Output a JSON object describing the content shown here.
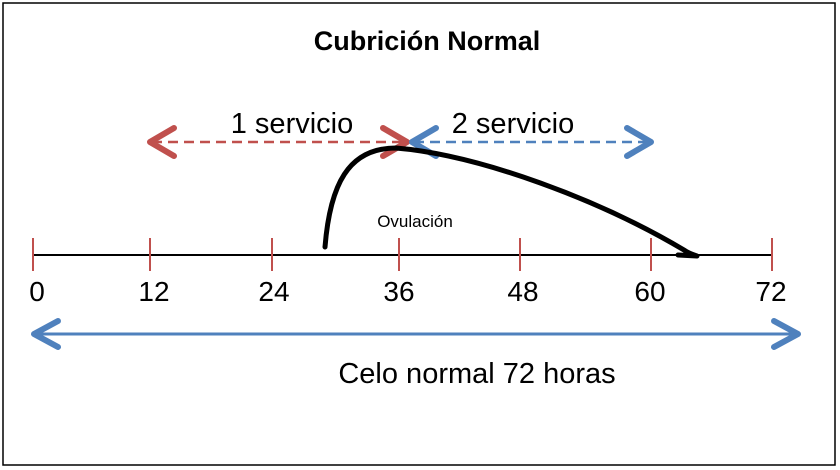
{
  "title": "Cubrición Normal",
  "service_1": {
    "label": "1 servicio",
    "range_hours": [
      12,
      36
    ],
    "color": "#C0504D"
  },
  "service_2": {
    "label": "2 servicio",
    "range_hours": [
      36,
      60
    ],
    "color": "#4F81BD"
  },
  "ovulation": {
    "label": "Ovulación",
    "curve_hours": [
      30,
      65
    ],
    "peak_hour": 36
  },
  "timeline": {
    "ticks": [
      "0",
      "12",
      "24",
      "36",
      "48",
      "60",
      "72"
    ],
    "tick_color": "#C0504D",
    "axis_color": "#000000"
  },
  "heat": {
    "label": "Celo normal 72 horas",
    "range_hours": [
      0,
      72
    ],
    "color": "#4F81BD"
  }
}
